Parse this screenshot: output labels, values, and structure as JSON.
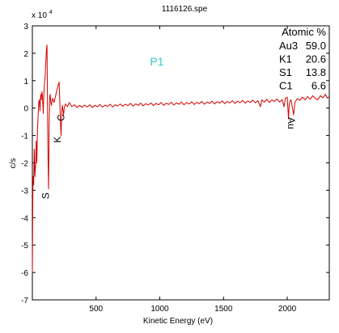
{
  "chart_data": {
    "type": "line",
    "title": "1116126.spe",
    "xlabel": "Kinetic Energy (eV)",
    "ylabel": "c/s",
    "y_exponent_label": "x 10",
    "y_exponent_power": "4",
    "xlim": [
      0,
      2330
    ],
    "ylim": [
      -7,
      3
    ],
    "x_ticks": [
      500,
      1000,
      1500,
      2000
    ],
    "y_ticks": [
      -7,
      -6,
      -5,
      -4,
      -3,
      -2,
      -1,
      0,
      1,
      2,
      3
    ],
    "series": [
      {
        "color": "#d40000",
        "points": [
          [
            0,
            -6.0
          ],
          [
            5,
            -2.5
          ],
          [
            10,
            -2.8
          ],
          [
            15,
            -1.5
          ],
          [
            20,
            -2.5
          ],
          [
            25,
            -2.1
          ],
          [
            30,
            -1.2
          ],
          [
            35,
            -2.0
          ],
          [
            40,
            -0.8
          ],
          [
            45,
            -0.3
          ],
          [
            50,
            0.2
          ],
          [
            55,
            0.3
          ],
          [
            60,
            -0.1
          ],
          [
            65,
            0.5
          ],
          [
            70,
            0.3
          ],
          [
            75,
            0.6
          ],
          [
            80,
            0.4
          ],
          [
            85,
            -0.2
          ],
          [
            90,
            0.5
          ],
          [
            95,
            0.9
          ],
          [
            100,
            1.1
          ],
          [
            105,
            1.6
          ],
          [
            110,
            2.1
          ],
          [
            115,
            2.3
          ],
          [
            118,
            0.5
          ],
          [
            122,
            -1.5
          ],
          [
            127,
            -2.95
          ],
          [
            132,
            -0.6
          ],
          [
            136,
            0.4
          ],
          [
            140,
            0.5
          ],
          [
            145,
            0.2
          ],
          [
            150,
            0.1
          ],
          [
            155,
            0.3
          ],
          [
            160,
            0.35
          ],
          [
            170,
            0.2
          ],
          [
            180,
            0.4
          ],
          [
            190,
            0.6
          ],
          [
            200,
            0.8
          ],
          [
            210,
            0.95
          ],
          [
            215,
            0.3
          ],
          [
            220,
            -0.45
          ],
          [
            225,
            -1.0
          ],
          [
            230,
            -0.2
          ],
          [
            235,
            0.1
          ],
          [
            245,
            -0.25
          ],
          [
            250,
            0.0
          ],
          [
            260,
            0.15
          ],
          [
            275,
            0.05
          ],
          [
            290,
            0.2
          ],
          [
            310,
            0.05
          ],
          [
            330,
            0.12
          ],
          [
            350,
            0.02
          ],
          [
            370,
            0.1
          ],
          [
            390,
            0.03
          ],
          [
            410,
            0.11
          ],
          [
            430,
            0.04
          ],
          [
            450,
            0.12
          ],
          [
            470,
            0.02
          ],
          [
            490,
            0.1
          ],
          [
            510,
            0.05
          ],
          [
            530,
            0.13
          ],
          [
            550,
            0.03
          ],
          [
            570,
            0.11
          ],
          [
            590,
            0.06
          ],
          [
            610,
            0.14
          ],
          [
            630,
            0.04
          ],
          [
            650,
            0.12
          ],
          [
            670,
            0.08
          ],
          [
            690,
            0.15
          ],
          [
            710,
            0.06
          ],
          [
            730,
            0.14
          ],
          [
            750,
            0.09
          ],
          [
            770,
            0.17
          ],
          [
            790,
            0.07
          ],
          [
            810,
            0.15
          ],
          [
            830,
            0.1
          ],
          [
            850,
            0.18
          ],
          [
            870,
            0.08
          ],
          [
            890,
            0.16
          ],
          [
            910,
            0.11
          ],
          [
            930,
            0.19
          ],
          [
            950,
            0.09
          ],
          [
            970,
            0.17
          ],
          [
            990,
            0.12
          ],
          [
            1010,
            0.2
          ],
          [
            1030,
            0.1
          ],
          [
            1050,
            0.18
          ],
          [
            1070,
            0.13
          ],
          [
            1090,
            0.21
          ],
          [
            1110,
            0.11
          ],
          [
            1130,
            0.19
          ],
          [
            1150,
            0.14
          ],
          [
            1170,
            0.22
          ],
          [
            1190,
            0.12
          ],
          [
            1210,
            0.2
          ],
          [
            1230,
            0.15
          ],
          [
            1250,
            0.23
          ],
          [
            1270,
            0.13
          ],
          [
            1290,
            0.21
          ],
          [
            1310,
            0.16
          ],
          [
            1330,
            0.24
          ],
          [
            1350,
            0.14
          ],
          [
            1370,
            0.22
          ],
          [
            1390,
            0.17
          ],
          [
            1410,
            0.25
          ],
          [
            1430,
            0.15
          ],
          [
            1450,
            0.23
          ],
          [
            1470,
            0.18
          ],
          [
            1490,
            0.26
          ],
          [
            1510,
            0.16
          ],
          [
            1530,
            0.24
          ],
          [
            1550,
            0.19
          ],
          [
            1570,
            0.27
          ],
          [
            1590,
            0.17
          ],
          [
            1610,
            0.25
          ],
          [
            1630,
            0.2
          ],
          [
            1650,
            0.28
          ],
          [
            1670,
            0.18
          ],
          [
            1690,
            0.26
          ],
          [
            1710,
            0.21
          ],
          [
            1730,
            0.29
          ],
          [
            1750,
            0.19
          ],
          [
            1770,
            0.27
          ],
          [
            1790,
            0.05
          ],
          [
            1800,
            0.3
          ],
          [
            1820,
            0.22
          ],
          [
            1840,
            0.32
          ],
          [
            1860,
            0.2
          ],
          [
            1880,
            0.3
          ],
          [
            1900,
            0.24
          ],
          [
            1920,
            0.33
          ],
          [
            1940,
            0.22
          ],
          [
            1960,
            0.31
          ],
          [
            1975,
            0.05
          ],
          [
            1985,
            0.35
          ],
          [
            2000,
            0.4
          ],
          [
            2010,
            -0.4
          ],
          [
            2015,
            0.1
          ],
          [
            2020,
            0.25
          ],
          [
            2030,
            0.3
          ],
          [
            2050,
            -0.25
          ],
          [
            2060,
            0.2
          ],
          [
            2080,
            0.35
          ],
          [
            2100,
            0.28
          ],
          [
            2120,
            0.4
          ],
          [
            2140,
            0.3
          ],
          [
            2160,
            0.42
          ],
          [
            2180,
            0.32
          ],
          [
            2200,
            0.45
          ],
          [
            2220,
            0.35
          ],
          [
            2240,
            0.3
          ],
          [
            2260,
            0.45
          ],
          [
            2280,
            0.38
          ],
          [
            2300,
            0.5
          ],
          [
            2315,
            0.36
          ],
          [
            2330,
            0.42
          ]
        ]
      }
    ],
    "legend_title": "Atomic %",
    "legend_entries": [
      {
        "name": "Au3",
        "value": "59.0"
      },
      {
        "name": "K1",
        "value": "20.6"
      },
      {
        "name": "S1",
        "value": "13.8"
      },
      {
        "name": "C1",
        "value": "6.6"
      }
    ],
    "point_label": "P1",
    "point_label_color": "#33cccc",
    "annotations": [
      {
        "text": "S",
        "x": 130,
        "y": -3.2,
        "rotate": -90
      },
      {
        "text": "K",
        "x": 222,
        "y": -1.15,
        "rotate": -90
      },
      {
        "text": "C",
        "x": 250,
        "y": -0.35,
        "rotate": -90
      },
      {
        "text": "Au",
        "x": 2005,
        "y": -0.55,
        "rotate": 90
      }
    ]
  }
}
